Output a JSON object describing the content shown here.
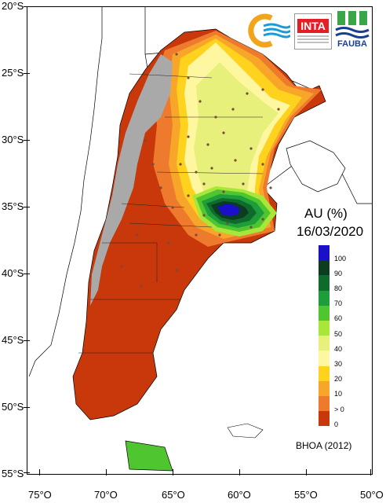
{
  "map": {
    "title": "AU (%)",
    "date": "16/03/2020",
    "source": "BHOA (2012)"
  },
  "axes": {
    "lat_labels": [
      "20°S",
      "25°S",
      "30°S",
      "35°S",
      "40°S",
      "45°S",
      "50°S",
      "55°S"
    ],
    "lon_labels": [
      "75°O",
      "70°O",
      "65°O",
      "60°O",
      "55°O",
      "50°O"
    ]
  },
  "legend": {
    "items": [
      {
        "label": "100",
        "color": "#1a10c8"
      },
      {
        "label": "90",
        "color": "#0b3d1e"
      },
      {
        "label": "80",
        "color": "#0e6b2c"
      },
      {
        "label": "70",
        "color": "#1e9e3a"
      },
      {
        "label": "60",
        "color": "#4fc62f"
      },
      {
        "label": "50",
        "color": "#a8e63a"
      },
      {
        "label": "40",
        "color": "#e6f07a"
      },
      {
        "label": "30",
        "color": "#fff7a0"
      },
      {
        "label": "20",
        "color": "#ffd21e"
      },
      {
        "label": "10",
        "color": "#f7a62a"
      },
      {
        "label": "> 0",
        "color": "#ee7a2e"
      },
      {
        "label": "0",
        "color": "#c8380a"
      }
    ]
  },
  "logos": {
    "inta": "INTA",
    "fauba": "FAUBA"
  },
  "colors": {
    "no_data_mountains": "#a9a9a9",
    "dry": "#c8380a",
    "wet": "#1a10c8"
  }
}
